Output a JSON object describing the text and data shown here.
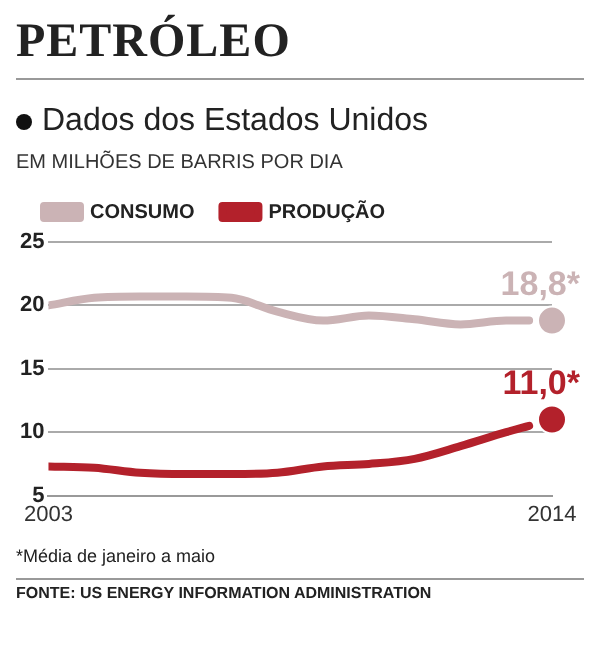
{
  "chart_data": {
    "type": "line",
    "title": "PETRÓLEO",
    "subtitle": "Dados dos Estados Unidos",
    "ylabel": "EM MILHÕES DE BARRIS POR DIA",
    "series": [
      {
        "name": "CONSUMO",
        "color": "#cbb3b5",
        "x": [
          2003,
          2004,
          2005,
          2006,
          2007,
          2008,
          2009,
          2010,
          2011,
          2012,
          2013,
          2013.5
        ],
        "values": [
          20.0,
          20.6,
          20.7,
          20.7,
          20.6,
          19.5,
          18.8,
          19.2,
          18.9,
          18.5,
          18.8,
          18.8
        ]
      },
      {
        "name": "PRODUÇÃO",
        "color": "#b3212b",
        "x": [
          2003,
          2004,
          2005,
          2006,
          2007,
          2008,
          2009,
          2010,
          2011,
          2012,
          2013,
          2013.5
        ],
        "values": [
          7.3,
          7.2,
          6.8,
          6.7,
          6.7,
          6.8,
          7.3,
          7.5,
          7.9,
          8.9,
          10.0,
          10.5
        ]
      },
      {
        "type": "scatter",
        "marker": "circle",
        "color": "#cbb3b5",
        "x": [
          2014
        ],
        "values": [
          18.8
        ],
        "value_labels": [
          "18,8*"
        ]
      },
      {
        "type": "scatter",
        "marker": "circle",
        "color": "#b3212b",
        "x": [
          2014
        ],
        "values": [
          11.0
        ],
        "value_labels": [
          "11,0*"
        ]
      }
    ],
    "xlim": [
      2003,
      2014
    ],
    "xticks": [
      2003,
      2014
    ],
    "ylim": [
      5,
      25
    ],
    "yticks": [
      5,
      10,
      15,
      20,
      25
    ],
    "grid": "y",
    "legend": "top left",
    "marker": "none",
    "annotations": [
      "*Média de janeiro a maio",
      "FONTE: US ENERGY INFORMATION ADMINISTRATION"
    ]
  }
}
